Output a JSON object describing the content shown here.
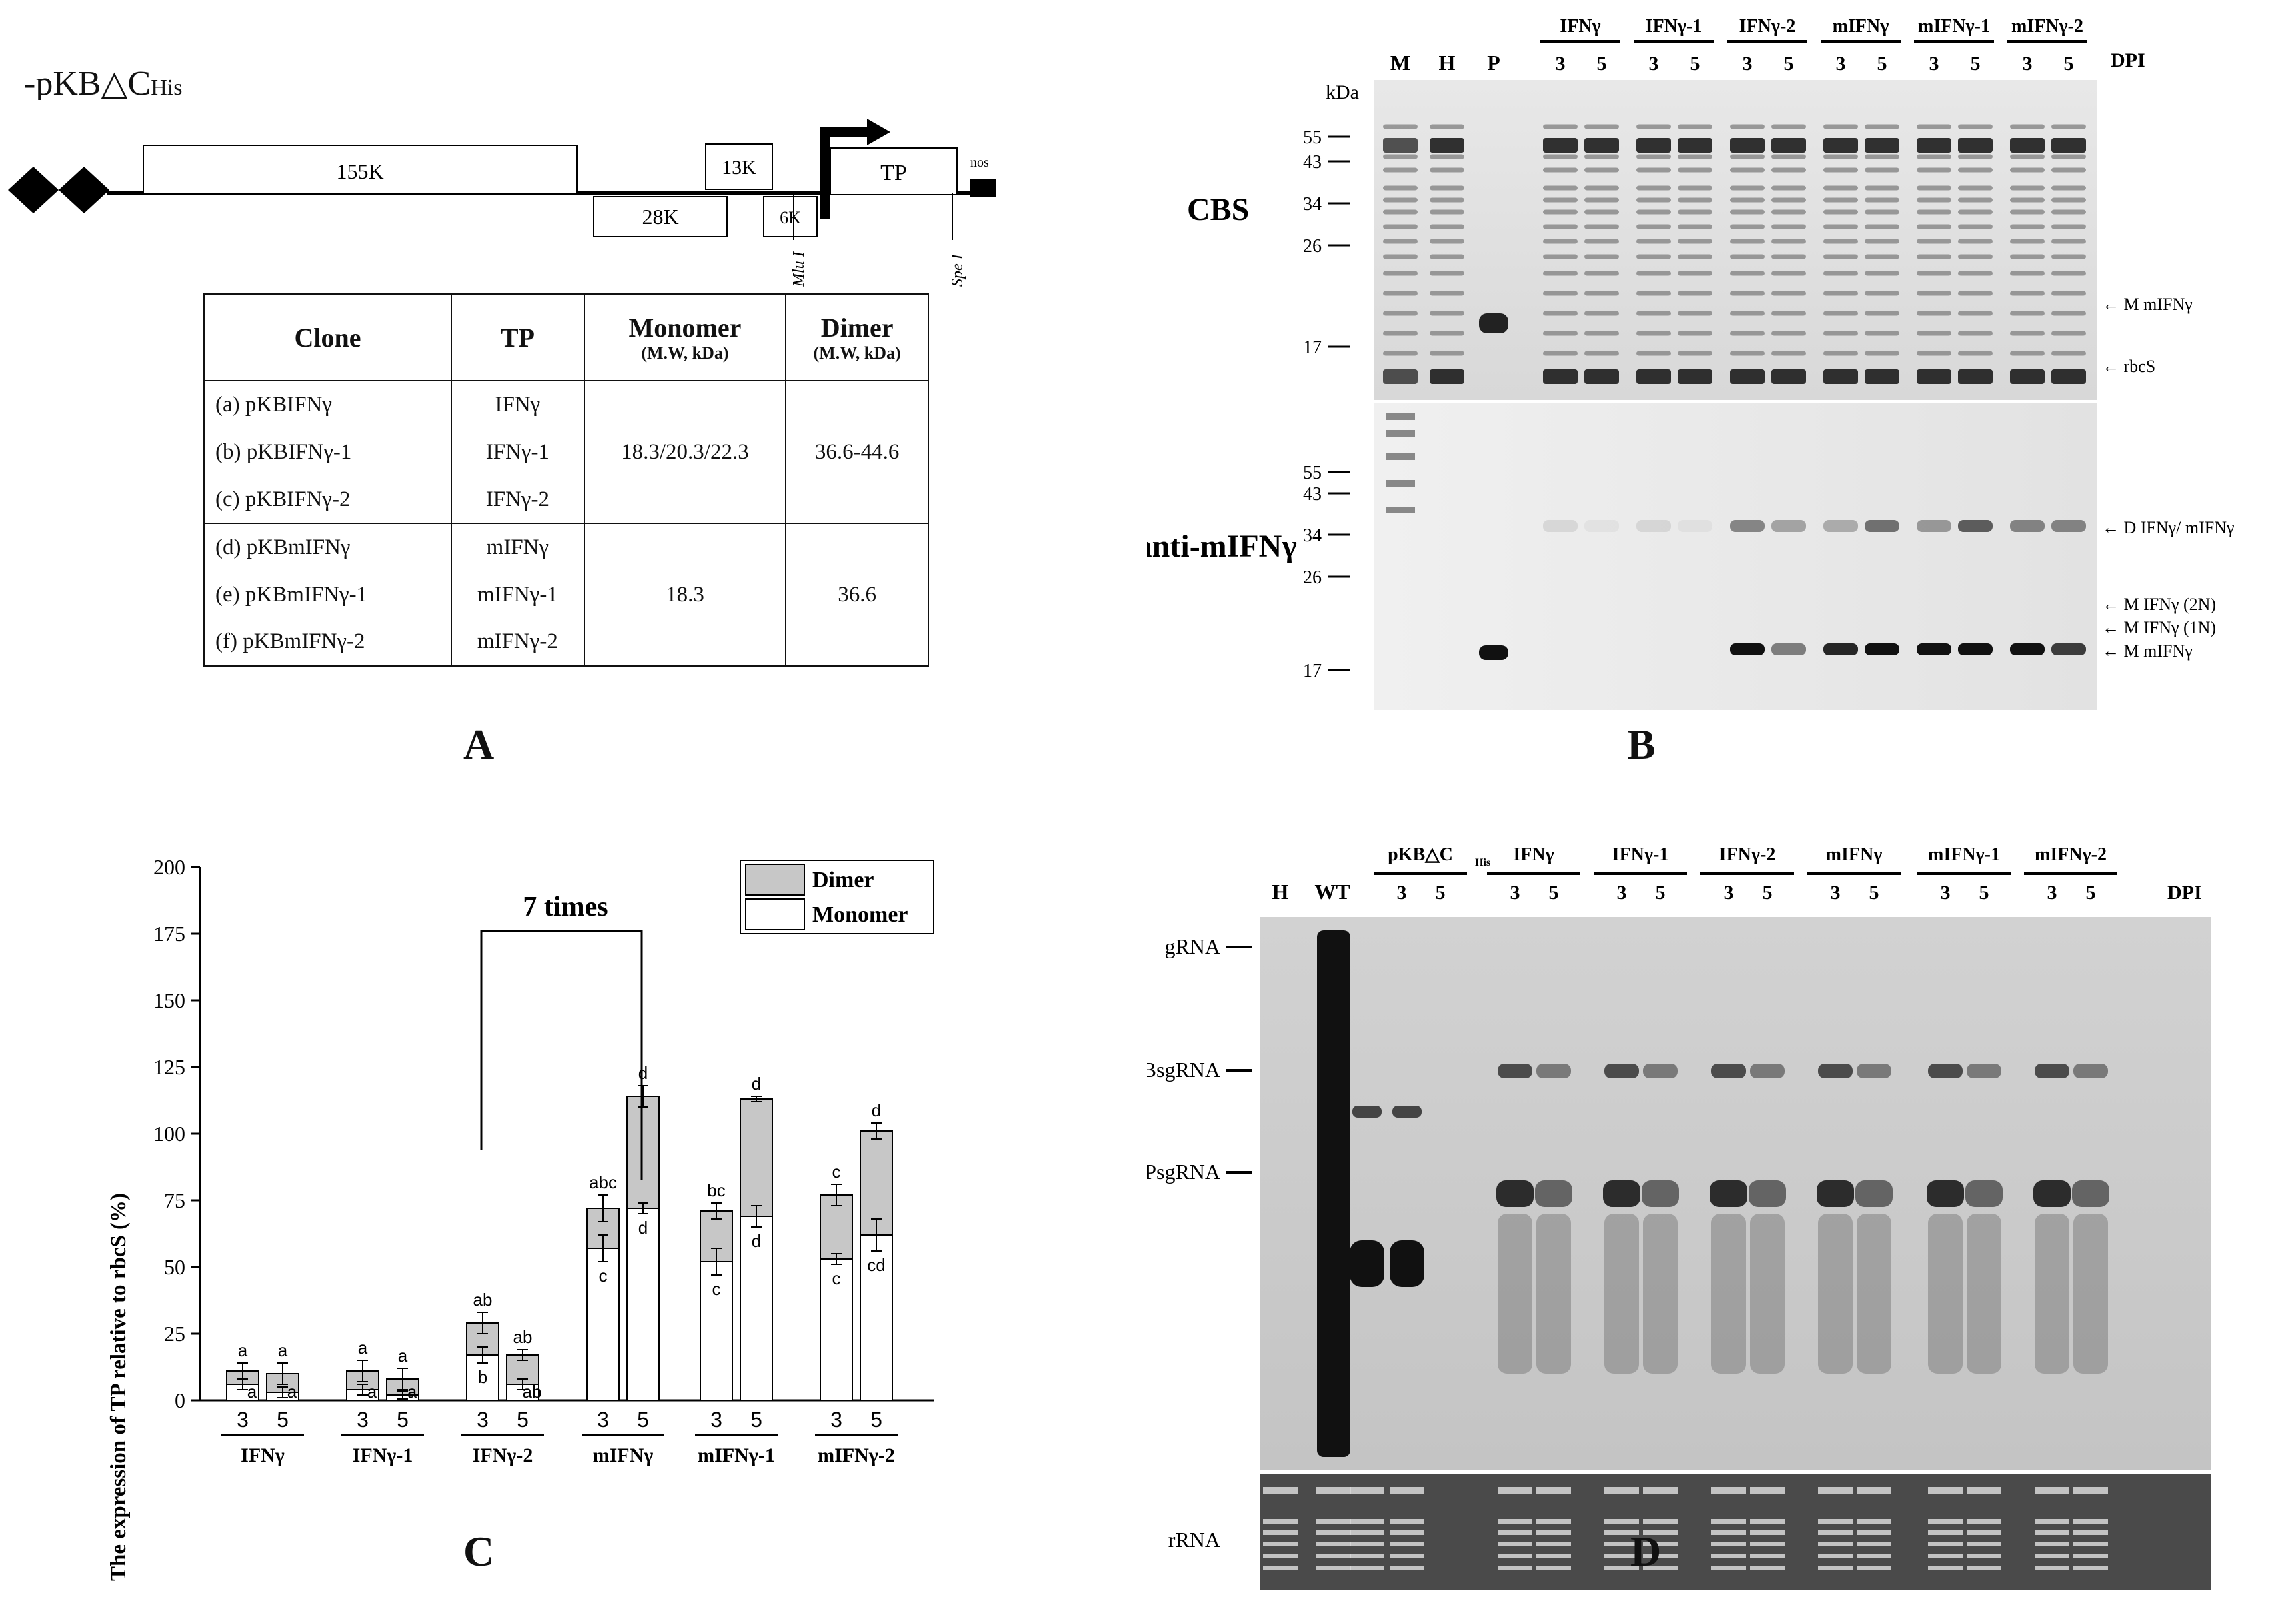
{
  "panel_a": {
    "construct": "-pKB△C",
    "construct_sub": "His",
    "genes": [
      "155K",
      "13K",
      "28K",
      "6K",
      "TP",
      "nos"
    ],
    "sites": [
      "Mlu I",
      "Spe I"
    ],
    "table": {
      "headers": [
        "Clone",
        "TP",
        "Monomer",
        "Dimer"
      ],
      "header_units": [
        "(M.W, kDa)",
        "(M.W, kDa)"
      ],
      "rows": [
        {
          "clone": "(a) pKBIFNγ",
          "tp": "IFNγ"
        },
        {
          "clone": "(b) pKBIFNγ-1",
          "tp": "IFNγ-1"
        },
        {
          "clone": "(c) pKBIFNγ-2",
          "tp": "IFNγ-2"
        },
        {
          "clone": "(d) pKBmIFNγ",
          "tp": "mIFNγ"
        },
        {
          "clone": "(e) pKBmIFNγ-1",
          "tp": "mIFNγ-1"
        },
        {
          "clone": "(f) pKBmIFNγ-2",
          "tp": "mIFNγ-2"
        }
      ],
      "group1_monomer": "18.3/20.3/22.3",
      "group1_dimer": "36.6-44.6",
      "group2_monomer": "18.3",
      "group2_dimer": "36.6"
    },
    "label": "A"
  },
  "panel_b": {
    "groups": [
      "IFNγ",
      "IFNγ-1",
      "IFNγ-2",
      "mIFNγ",
      "mIFNγ-1",
      "mIFNγ-2"
    ],
    "lanes_left": [
      "M",
      "H",
      "P"
    ],
    "dpi_label": "DPI",
    "kda_label": "kDa",
    "cbs_label": "CBS",
    "ib_label": "IB: anti-mIFNγ",
    "cbs_markers": [
      "55",
      "43",
      "34",
      "26",
      "17"
    ],
    "ib_markers": [
      "55",
      "43",
      "34",
      "26",
      "17"
    ],
    "cbs_annotations": [
      "M mIFNγ",
      "rbcS"
    ],
    "ib_annotations": [
      "D IFNγ/ mIFNγ",
      "M IFNγ (2N)",
      "M IFNγ (1N)",
      "M mIFNγ"
    ],
    "label": "B"
  },
  "panel_c": {
    "label": "C",
    "bracket_label": "7 times",
    "chart_data": {
      "type": "bar",
      "ylabel": "The expression of TP relative to rbcS (%)",
      "ylim": [
        0,
        200
      ],
      "yticks": [
        0,
        25,
        50,
        75,
        100,
        125,
        150,
        175,
        200
      ],
      "groups": [
        "IFNγ",
        "IFNγ-1",
        "IFNγ-2",
        "mIFNγ",
        "mIFNγ-1",
        "mIFNγ-2"
      ],
      "dpi": [
        "3",
        "5"
      ],
      "legend": [
        "Dimer",
        "Monomer"
      ],
      "series": [
        {
          "name": "Monomer",
          "values": [
            6,
            3,
            4,
            2,
            17,
            6,
            57,
            72,
            52,
            69,
            53,
            62
          ],
          "errors": [
            2,
            2,
            2,
            1.5,
            3,
            2,
            5,
            2,
            5,
            4,
            2,
            6
          ],
          "letters": [
            "a",
            "a",
            "a",
            "a",
            "b",
            "ab",
            "c",
            "d",
            "c",
            "d",
            "c",
            "cd"
          ]
        },
        {
          "name": "Dimer",
          "values": [
            5,
            7,
            7,
            6,
            12,
            11,
            15,
            42,
            19,
            44,
            24,
            39
          ],
          "totals": [
            11,
            10,
            11,
            8,
            29,
            17,
            72,
            114,
            71,
            113,
            77,
            101
          ],
          "errors": [
            3,
            4,
            4,
            4,
            4,
            2,
            5,
            4,
            3,
            1,
            4,
            3
          ],
          "letters": [
            "a",
            "a",
            "a",
            "a",
            "ab",
            "ab",
            "abc",
            "d",
            "bc",
            "d",
            "c",
            "d"
          ]
        }
      ]
    }
  },
  "panel_d": {
    "label": "D",
    "groups": [
      "pKB△C",
      "IFNγ",
      "IFNγ-1",
      "IFNγ-2",
      "mIFNγ",
      "mIFNγ-1",
      "mIFNγ-2"
    ],
    "group0_sub": "His",
    "lanes_left": [
      "H",
      "WT"
    ],
    "dpi_label": "DPI",
    "rna_labels": [
      "gRNA",
      "TGBsgRNA",
      "CPsgRNA"
    ],
    "rrna_label": "rRNA"
  }
}
